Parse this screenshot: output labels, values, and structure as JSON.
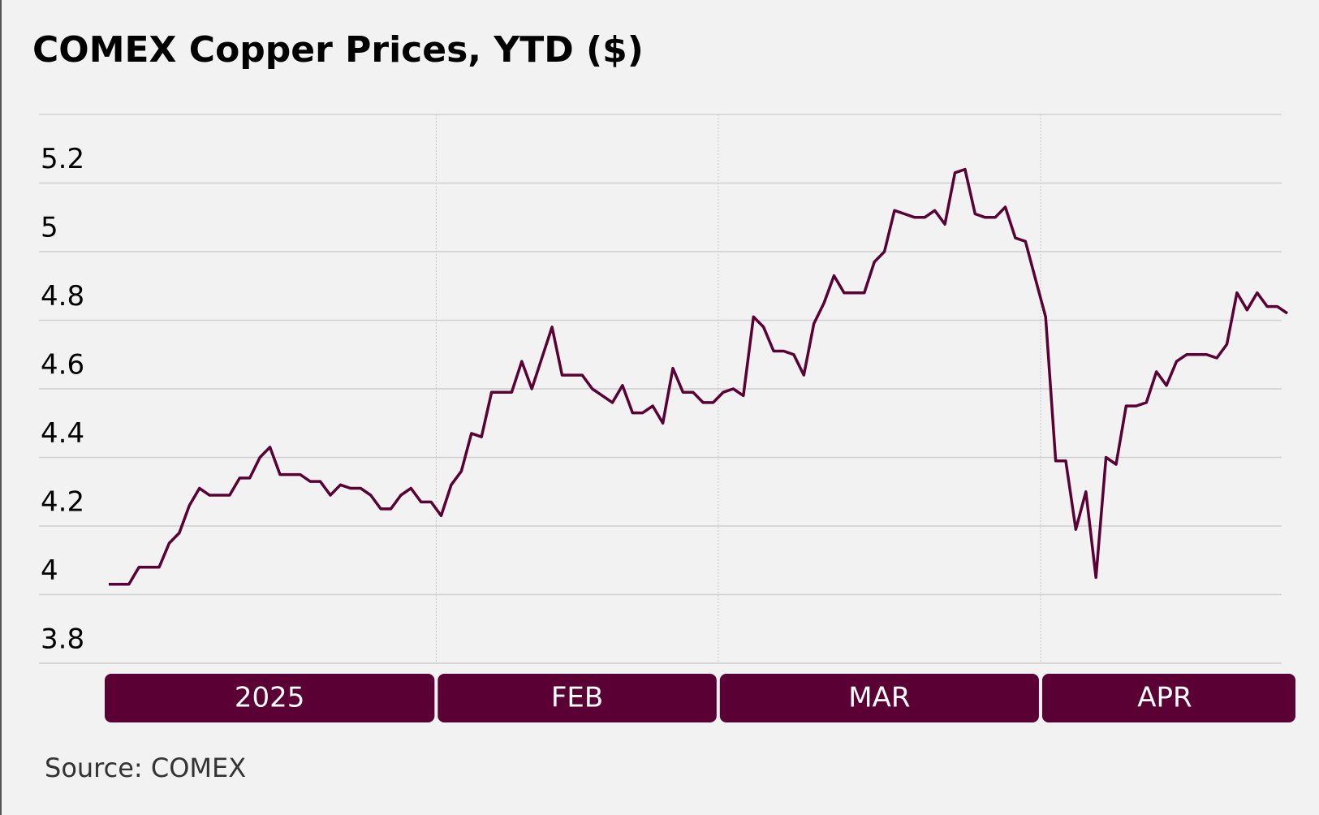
{
  "chart_data": {
    "type": "line",
    "title": "COMEX Copper Prices, YTD ($)",
    "source": "Source: COMEX",
    "categories": [
      "2025",
      null,
      null,
      null,
      null,
      null,
      null,
      null,
      null,
      null,
      null,
      null,
      null,
      null,
      null,
      null,
      null,
      null,
      null,
      null,
      null,
      null,
      null,
      null,
      null,
      null,
      null,
      null,
      null,
      null,
      null,
      null,
      null,
      "FEB",
      null,
      null,
      null,
      null,
      null,
      null,
      null,
      null,
      null,
      null,
      null,
      null,
      null,
      null,
      null,
      null,
      null,
      null,
      null,
      null,
      null,
      null,
      null,
      null,
      null,
      null,
      null,
      "MAR",
      null,
      null,
      null,
      null,
      null,
      null,
      null,
      null,
      null,
      null,
      null,
      null,
      null,
      null,
      null,
      null,
      null,
      null,
      null,
      null,
      null,
      null,
      null,
      null,
      null,
      null,
      null,
      null,
      null,
      null,
      null,
      "APR",
      null,
      null,
      null,
      null,
      null,
      null,
      null,
      null,
      null,
      null,
      null,
      null,
      null,
      null,
      null,
      null,
      null,
      null,
      null,
      null,
      null,
      null,
      null,
      null
    ],
    "values": [
      4.03,
      4.03,
      4.03,
      4.08,
      4.08,
      4.08,
      4.15,
      4.18,
      4.26,
      4.31,
      4.29,
      4.29,
      4.29,
      4.34,
      4.34,
      4.4,
      4.43,
      4.35,
      4.35,
      4.35,
      4.33,
      4.33,
      4.29,
      4.32,
      4.31,
      4.31,
      4.29,
      4.25,
      4.25,
      4.29,
      4.31,
      4.27,
      4.27,
      4.23,
      4.32,
      4.36,
      4.47,
      4.46,
      4.59,
      4.59,
      4.59,
      4.68,
      4.6,
      4.69,
      4.78,
      4.64,
      4.64,
      4.64,
      4.6,
      4.58,
      4.56,
      4.61,
      4.53,
      4.53,
      4.55,
      4.5,
      4.66,
      4.59,
      4.59,
      4.56,
      4.56,
      4.59,
      4.6,
      4.58,
      4.81,
      4.78,
      4.71,
      4.71,
      4.7,
      4.64,
      4.79,
      4.85,
      4.93,
      4.88,
      4.88,
      4.88,
      4.97,
      5.0,
      5.12,
      5.11,
      5.1,
      5.1,
      5.12,
      5.08,
      5.23,
      5.24,
      5.11,
      5.1,
      5.1,
      5.13,
      5.04,
      5.03,
      4.92,
      4.81,
      4.39,
      4.39,
      4.19,
      4.3,
      4.05,
      4.4,
      4.38,
      4.55,
      4.55,
      4.56,
      4.65,
      4.61,
      4.68,
      4.7,
      4.7,
      4.7,
      4.69,
      4.73,
      4.88,
      4.83,
      4.88,
      4.84,
      4.84,
      4.82
    ],
    "color": "#5a0035",
    "ylim": [
      3.8,
      5.4
    ],
    "yticks": [
      3.8,
      4.0,
      4.2,
      4.4,
      4.6,
      4.8,
      5.0,
      5.2
    ],
    "grid": true
  }
}
